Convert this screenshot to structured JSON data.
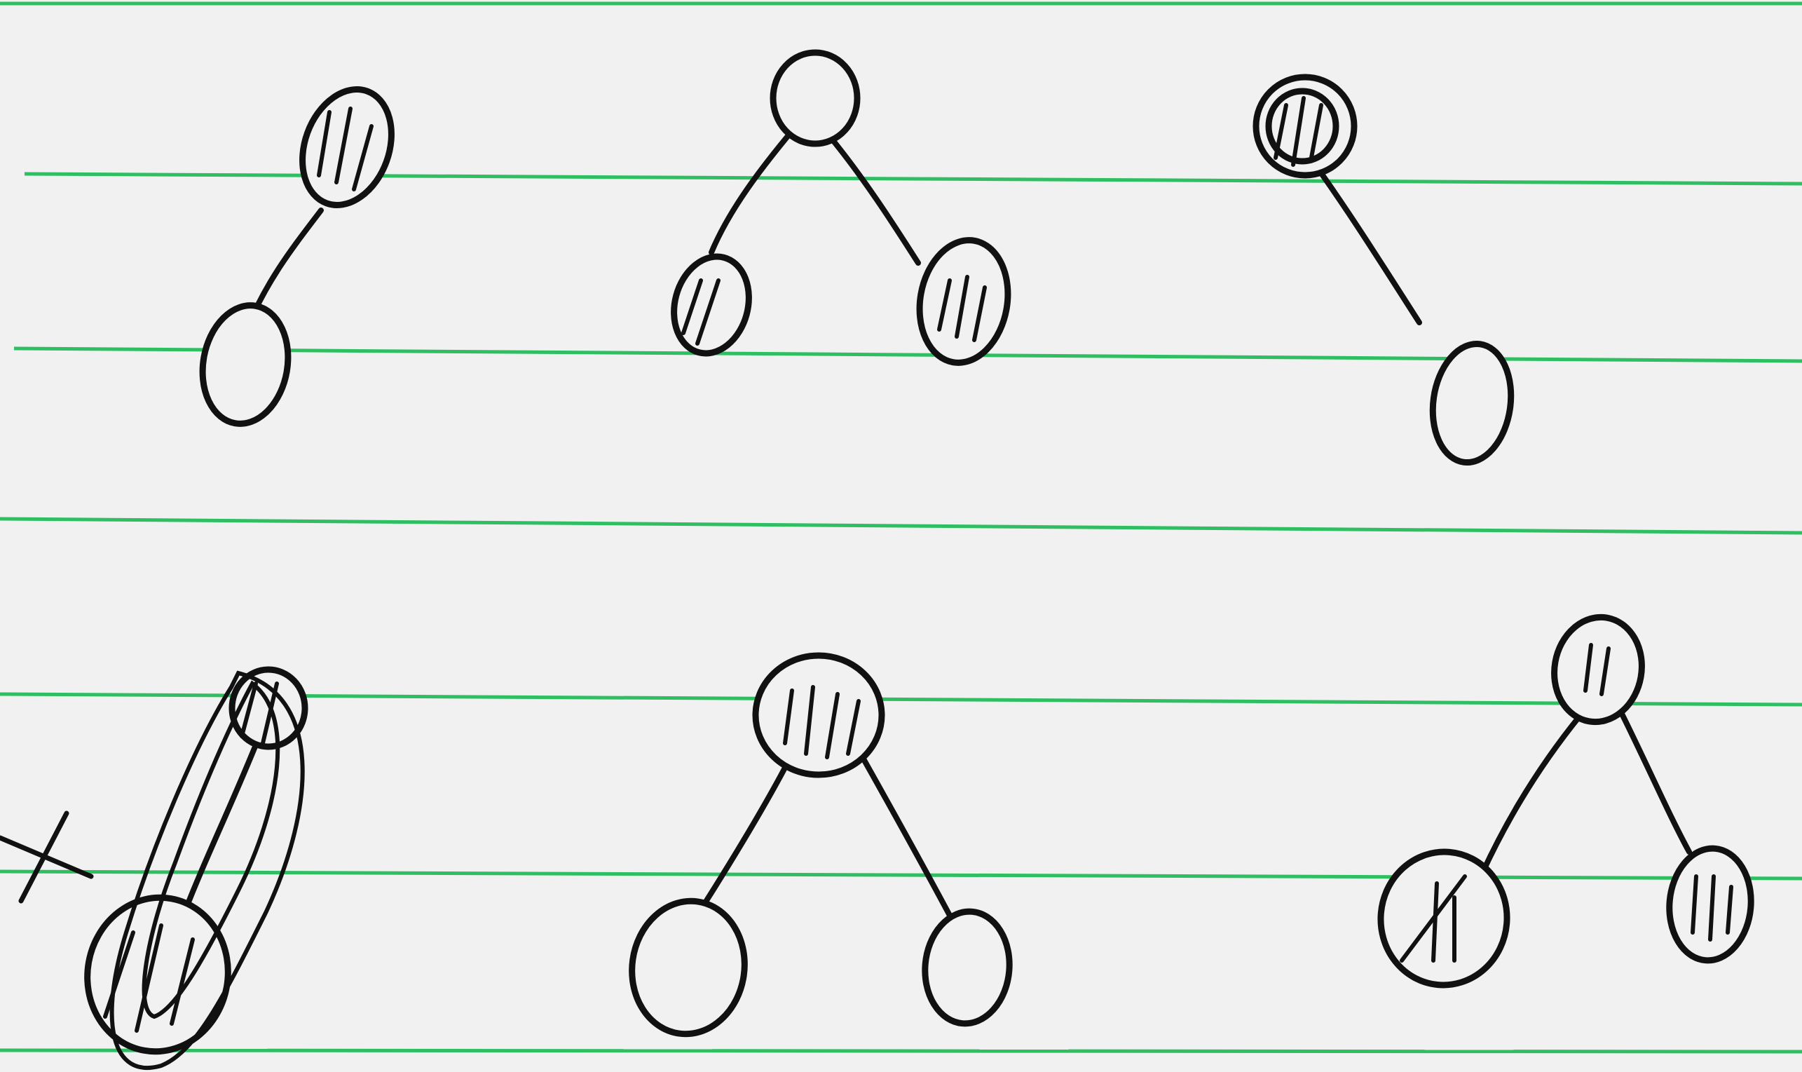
{
  "paper": {
    "background": "#f1f1f1",
    "rule_color": "#2fbf62",
    "ink_color": "#111111"
  },
  "diagrams": [
    {
      "id": "tree-1",
      "nodes": [
        {
          "id": "root",
          "state": "hatched"
        },
        {
          "id": "left-child",
          "state": "empty"
        }
      ],
      "edges": [
        [
          "root",
          "left-child"
        ]
      ]
    },
    {
      "id": "tree-2",
      "nodes": [
        {
          "id": "root",
          "state": "empty"
        },
        {
          "id": "left-child",
          "state": "hatched"
        },
        {
          "id": "right-child",
          "state": "hatched"
        }
      ],
      "edges": [
        [
          "root",
          "left-child"
        ],
        [
          "root",
          "right-child"
        ]
      ]
    },
    {
      "id": "tree-3",
      "nodes": [
        {
          "id": "root",
          "state": "hatched"
        },
        {
          "id": "right-child",
          "state": "empty"
        }
      ],
      "edges": [
        [
          "root",
          "right-child"
        ]
      ]
    },
    {
      "id": "tree-4",
      "crossed_out": true,
      "nodes": [
        {
          "id": "root",
          "state": "hatched"
        },
        {
          "id": "left-child",
          "state": "hatched"
        }
      ],
      "edges": [
        [
          "root",
          "left-child"
        ]
      ]
    },
    {
      "id": "tree-5",
      "nodes": [
        {
          "id": "root",
          "state": "hatched"
        },
        {
          "id": "left-child",
          "state": "empty"
        },
        {
          "id": "right-child",
          "state": "empty"
        }
      ],
      "edges": [
        [
          "root",
          "left-child"
        ],
        [
          "root",
          "right-child"
        ]
      ]
    },
    {
      "id": "tree-6",
      "nodes": [
        {
          "id": "root",
          "state": "hatched"
        },
        {
          "id": "left-child",
          "state": "hatched"
        },
        {
          "id": "right-child",
          "state": "hatched"
        }
      ],
      "edges": [
        [
          "root",
          "left-child"
        ],
        [
          "root",
          "right-child"
        ]
      ]
    }
  ],
  "marks": {
    "cross": "X"
  }
}
